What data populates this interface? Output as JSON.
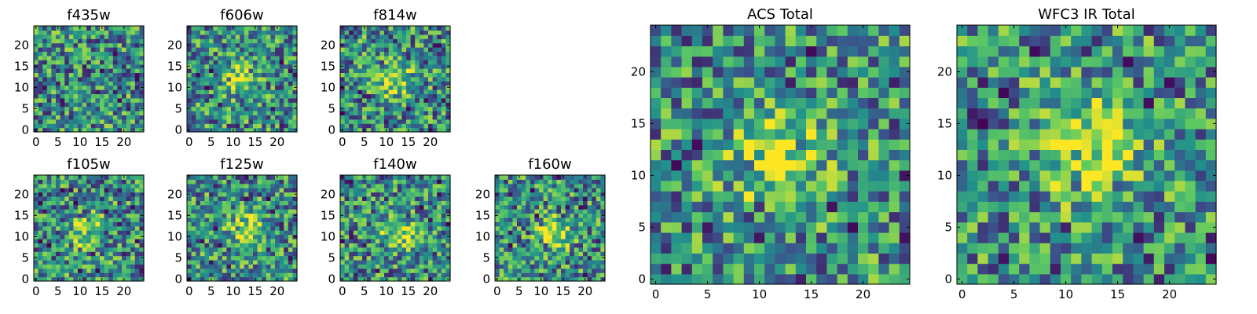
{
  "colormap": "viridis",
  "colors": {
    "background": "#ffffff",
    "frame": "#000000",
    "viridis_stops": [
      "#440154",
      "#3b528b",
      "#21918c",
      "#5ec962",
      "#fde725"
    ]
  },
  "chart_data": [
    {
      "type": "heatmap",
      "title": "f435w",
      "xticks": [
        0,
        5,
        10,
        15,
        20
      ],
      "yticks": [
        0,
        5,
        10,
        15,
        20
      ],
      "xlim": [
        0,
        25
      ],
      "ylim": [
        0,
        25
      ],
      "grid": false,
      "source_center": null,
      "description_level": "noise"
    },
    {
      "type": "heatmap",
      "title": "f606w",
      "xticks": [
        0,
        5,
        10,
        15,
        20
      ],
      "yticks": [
        0,
        5,
        10,
        15,
        20
      ],
      "xlim": [
        0,
        25
      ],
      "ylim": [
        0,
        25
      ],
      "grid": false,
      "source_center": [
        12,
        12
      ]
    },
    {
      "type": "heatmap",
      "title": "f814w",
      "xticks": [
        0,
        5,
        10,
        15,
        20
      ],
      "yticks": [
        0,
        5,
        10,
        15,
        20
      ],
      "xlim": [
        0,
        25
      ],
      "ylim": [
        0,
        25
      ],
      "grid": false,
      "source_center": [
        12,
        12
      ]
    },
    {
      "type": "heatmap",
      "title": "f105w",
      "xticks": [
        0,
        5,
        10,
        15,
        20
      ],
      "yticks": [
        0,
        5,
        10,
        15,
        20
      ],
      "xlim": [
        0,
        25
      ],
      "ylim": [
        0,
        25
      ],
      "grid": false,
      "source_center": [
        12,
        11
      ]
    },
    {
      "type": "heatmap",
      "title": "f125w",
      "xticks": [
        0,
        5,
        10,
        15,
        20
      ],
      "yticks": [
        0,
        5,
        10,
        15,
        20
      ],
      "xlim": [
        0,
        25
      ],
      "ylim": [
        0,
        25
      ],
      "grid": false,
      "source_center": [
        13,
        12
      ]
    },
    {
      "type": "heatmap",
      "title": "f140w",
      "xticks": [
        0,
        5,
        10,
        15,
        20
      ],
      "yticks": [
        0,
        5,
        10,
        15,
        20
      ],
      "xlim": [
        0,
        25
      ],
      "ylim": [
        0,
        25
      ],
      "grid": false,
      "source_center": [
        13,
        11
      ]
    },
    {
      "type": "heatmap",
      "title": "f160w",
      "xticks": [
        0,
        5,
        10,
        15,
        20
      ],
      "yticks": [
        0,
        5,
        10,
        15,
        20
      ],
      "xlim": [
        0,
        25
      ],
      "ylim": [
        0,
        25
      ],
      "grid": false,
      "source_center": [
        13,
        11
      ]
    },
    {
      "type": "heatmap",
      "title": "ACS Total",
      "xticks": [
        0,
        5,
        10,
        15,
        20
      ],
      "yticks": [
        0,
        5,
        10,
        15,
        20
      ],
      "xlim": [
        0,
        25
      ],
      "ylim": [
        0,
        25
      ],
      "grid": false,
      "source_center": [
        12,
        12
      ]
    },
    {
      "type": "heatmap",
      "title": "WFC3 IR Total",
      "xticks": [
        0,
        5,
        10,
        15,
        20
      ],
      "yticks": [
        0,
        5,
        10,
        15,
        20
      ],
      "xlim": [
        0,
        25
      ],
      "ylim": [
        0,
        25
      ],
      "grid": false,
      "source_center": [
        12,
        13
      ]
    }
  ]
}
